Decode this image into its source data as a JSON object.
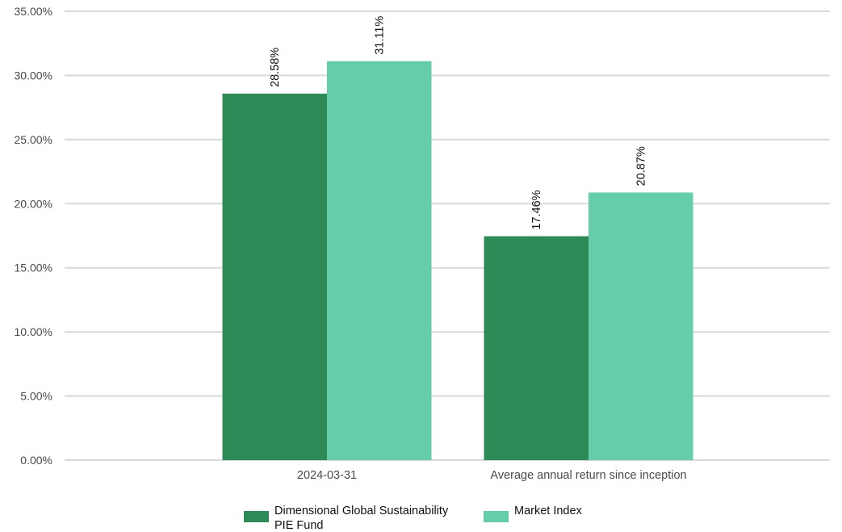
{
  "chart_data": {
    "type": "bar",
    "categories": [
      "2024-03-31",
      "Average annual return since inception"
    ],
    "series": [
      {
        "name": "Dimensional Global Sustainability PIE Fund",
        "legend_lines": [
          "Dimensional Global Sustainability",
          "PIE Fund"
        ],
        "values": [
          28.58,
          17.46
        ],
        "value_labels": [
          "28.58%",
          "17.46%"
        ],
        "color": "#2e8b57"
      },
      {
        "name": "Market Index",
        "legend_lines": [
          "Market Index"
        ],
        "values": [
          31.11,
          20.87
        ],
        "value_labels": [
          "31.11%",
          "20.87%"
        ],
        "color": "#66cdaa"
      }
    ],
    "y_ticks": [
      0,
      5,
      10,
      15,
      20,
      25,
      30,
      35
    ],
    "y_tick_labels": [
      "0.00%",
      "5.00%",
      "10.00%",
      "15.00%",
      "20.00%",
      "25.00%",
      "30.00%",
      "35.00%"
    ],
    "ylim": [
      0,
      35
    ],
    "grid": true,
    "gridline_color": "#d9d9d9",
    "legend_position": "bottom-center"
  }
}
